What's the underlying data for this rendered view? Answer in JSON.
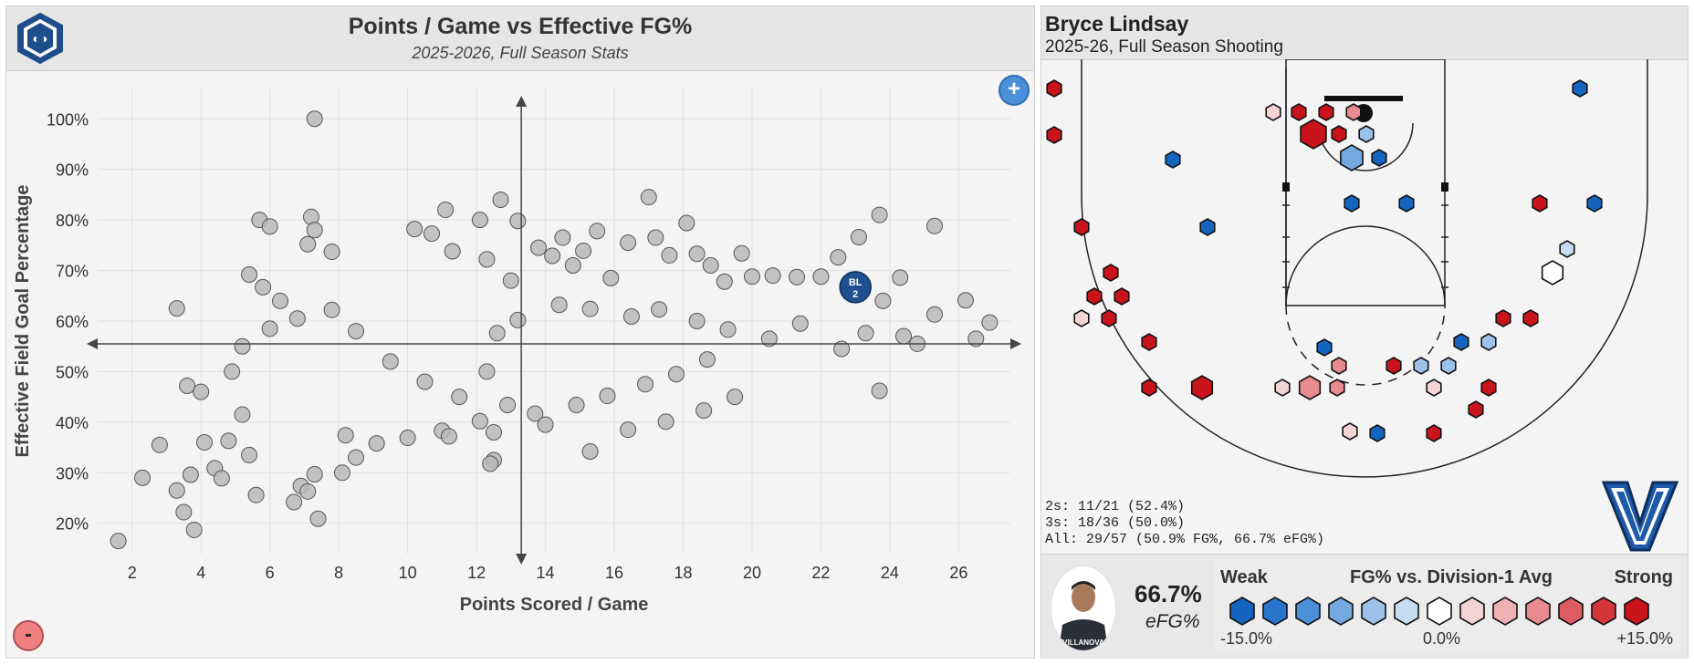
{
  "left_chart": {
    "title": "Points / Game vs Effective FG%",
    "subtitle": "2025-2026, Full Season Stats",
    "zoom_in_symbol": "+",
    "zoom_out_symbol": "-",
    "highlight_label": "BL",
    "highlight_label2": "2"
  },
  "chart_data": {
    "type": "scatter",
    "title": "Points / Game vs Effective FG%",
    "subtitle": "2025-2026, Full Season Stats",
    "xlabel": "Points Scored / Game",
    "ylabel": "Effective Field Goal Percentage",
    "xlim": [
      1,
      27.5
    ],
    "ylim": [
      14,
      106
    ],
    "x_ticks": [
      2,
      4,
      6,
      8,
      10,
      12,
      14,
      16,
      18,
      20,
      22,
      24,
      26
    ],
    "y_ticks": [
      20,
      30,
      40,
      50,
      60,
      70,
      80,
      90,
      100
    ],
    "crosshair": {
      "x": 13.3,
      "y": 55.5
    },
    "highlight": {
      "label": "BL 2",
      "x": 23.0,
      "y": 66.7
    },
    "series": [
      {
        "name": "Division-1 players",
        "points": [
          [
            1.6,
            16.5
          ],
          [
            2.3,
            29
          ],
          [
            2.8,
            35.5
          ],
          [
            3.3,
            26.5
          ],
          [
            3.5,
            22.2
          ],
          [
            3.7,
            29.6
          ],
          [
            3.8,
            18.7
          ],
          [
            4.1,
            36
          ],
          [
            4.4,
            30.9
          ],
          [
            4.6,
            28.9
          ],
          [
            3.3,
            62.5
          ],
          [
            3.6,
            47.2
          ],
          [
            4.0,
            46.0
          ],
          [
            4.8,
            36.3
          ],
          [
            4.9,
            50
          ],
          [
            5.2,
            41.5
          ],
          [
            5.4,
            33.5
          ],
          [
            5.6,
            25.6
          ],
          [
            5.7,
            80
          ],
          [
            6.0,
            78.7
          ],
          [
            5.4,
            69.2
          ],
          [
            5.8,
            66.7
          ],
          [
            6.3,
            64
          ],
          [
            7.3,
            100
          ],
          [
            7.2,
            80.6
          ],
          [
            7.3,
            78
          ],
          [
            7.1,
            75.2
          ],
          [
            7.8,
            73.7
          ],
          [
            7.4,
            20.9
          ],
          [
            6.7,
            24.2
          ],
          [
            6.9,
            27.4
          ],
          [
            7.1,
            26.3
          ],
          [
            7.3,
            29.7
          ],
          [
            8.1,
            30
          ],
          [
            8.5,
            33
          ],
          [
            5.2,
            55
          ],
          [
            6.0,
            58.5
          ],
          [
            6.8,
            60.5
          ],
          [
            7.8,
            62.2
          ],
          [
            8.5,
            58
          ],
          [
            9.5,
            52
          ],
          [
            10.5,
            48
          ],
          [
            11.5,
            45
          ],
          [
            12.3,
            50
          ],
          [
            12.5,
            32.5
          ],
          [
            12.4,
            31.8
          ],
          [
            12.7,
            84
          ],
          [
            13.2,
            79.8
          ],
          [
            12.1,
            80
          ],
          [
            11.1,
            82
          ],
          [
            10.2,
            78.2
          ],
          [
            10.7,
            77.3
          ],
          [
            11.3,
            73.8
          ],
          [
            12.3,
            72.2
          ],
          [
            13.0,
            68
          ],
          [
            13.8,
            74.5
          ],
          [
            14.2,
            72.9
          ],
          [
            14.5,
            76.5
          ],
          [
            15.1,
            73.9
          ],
          [
            15.5,
            77.8
          ],
          [
            14.8,
            71
          ],
          [
            15.9,
            68.5
          ],
          [
            16.4,
            75.5
          ],
          [
            17.0,
            84.5
          ],
          [
            17.2,
            76.5
          ],
          [
            17.6,
            73
          ],
          [
            18.1,
            79.4
          ],
          [
            18.4,
            73.3
          ],
          [
            18.8,
            71
          ],
          [
            19.2,
            67.8
          ],
          [
            19.7,
            73.4
          ],
          [
            20.0,
            68.8
          ],
          [
            20.6,
            69
          ],
          [
            21.3,
            68.7
          ],
          [
            22.0,
            68.8
          ],
          [
            22.5,
            72.6
          ],
          [
            23.1,
            76.6
          ],
          [
            23.7,
            81
          ],
          [
            24.3,
            68.6
          ],
          [
            25.3,
            78.8
          ],
          [
            26.2,
            64.1
          ],
          [
            26.9,
            59.7
          ],
          [
            26.5,
            56.5
          ],
          [
            25.3,
            61.3
          ],
          [
            24.8,
            55.5
          ],
          [
            24.4,
            57
          ],
          [
            23.8,
            64
          ],
          [
            23.3,
            57.6
          ],
          [
            22.6,
            54.5
          ],
          [
            23.7,
            46.2
          ],
          [
            21.4,
            59.5
          ],
          [
            20.5,
            56.5
          ],
          [
            19.3,
            58.3
          ],
          [
            18.4,
            60
          ],
          [
            17.3,
            62.3
          ],
          [
            16.5,
            60.9
          ],
          [
            15.3,
            62.4
          ],
          [
            14.4,
            63.2
          ],
          [
            13.2,
            60.2
          ],
          [
            12.6,
            57.6
          ],
          [
            18.7,
            52.4
          ],
          [
            17.8,
            49.5
          ],
          [
            16.9,
            47.5
          ],
          [
            15.8,
            45.2
          ],
          [
            14.9,
            43.4
          ],
          [
            13.7,
            41.7
          ],
          [
            12.9,
            43.4
          ],
          [
            12.1,
            40.2
          ],
          [
            11.0,
            38.3
          ],
          [
            10.0,
            36.9
          ],
          [
            9.1,
            35.8
          ],
          [
            8.2,
            37.4
          ],
          [
            19.5,
            45.0
          ],
          [
            18.6,
            42.3
          ],
          [
            17.5,
            40.1
          ],
          [
            16.4,
            38.5
          ],
          [
            15.3,
            34.2
          ],
          [
            14.0,
            39.5
          ],
          [
            12.5,
            38.0
          ],
          [
            11.2,
            37.2
          ]
        ]
      }
    ]
  },
  "right_panel": {
    "player_name": "Bryce Lindsay",
    "subtitle": "2025-26, Full Season Shooting",
    "stats": {
      "twos": "2s: 11/21 (52.4%)",
      "threes": "3s: 18/36 (50.0%)",
      "all": "All: 29/57 (50.9% FG%, 66.7% eFG%)"
    },
    "efg_value": "66.7%",
    "efg_label": "eFG%",
    "photo_caption": "VILLANOVA",
    "scale": {
      "weak": "Weak",
      "title": "FG% vs. Division-1 Avg",
      "strong": "Strong",
      "min": "-15.0%",
      "mid": "0.0%",
      "max": "+15.0%",
      "colors": [
        "#1565c0",
        "#2a75cc",
        "#4b8fd8",
        "#74a8e0",
        "#9cc2ea",
        "#c7dcf2",
        "#ffffff",
        "#f4d3d5",
        "#eeb0b3",
        "#e88a8f",
        "#dd5c62",
        "#d4343a",
        "#c9141c"
      ]
    },
    "team_logo_letter": "V"
  }
}
